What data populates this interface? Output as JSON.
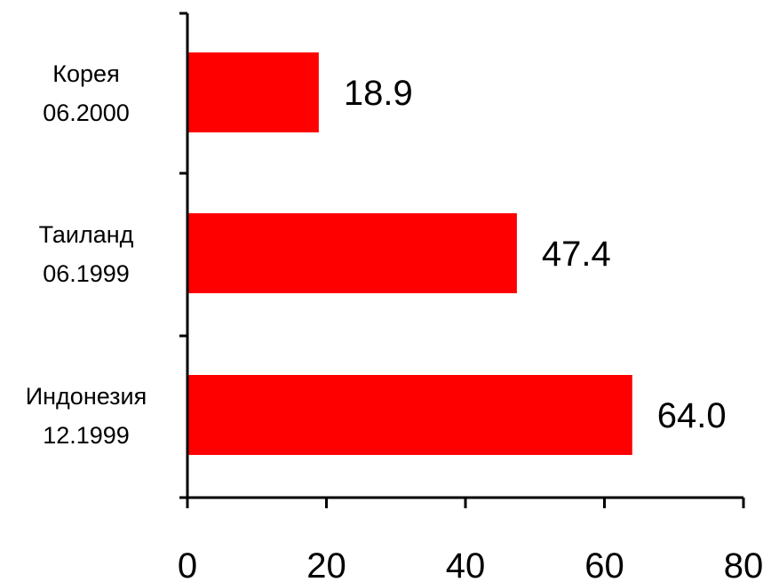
{
  "chart_data": {
    "type": "bar",
    "orientation": "horizontal",
    "categories": [
      [
        "Корея",
        "06.2000"
      ],
      [
        "Таиланд",
        "06.1999"
      ],
      [
        "Индонезия",
        "12.1999"
      ]
    ],
    "values": [
      18.9,
      47.4,
      64.0
    ],
    "value_labels": [
      "18.9",
      "47.4",
      "64.0"
    ],
    "xlim": [
      0,
      80
    ],
    "x_ticks": [
      0,
      20,
      40,
      60,
      80
    ],
    "x_tick_labels": [
      "0",
      "20",
      "40",
      "60",
      "80"
    ],
    "grid": false,
    "bar_color": "#ff0000"
  }
}
